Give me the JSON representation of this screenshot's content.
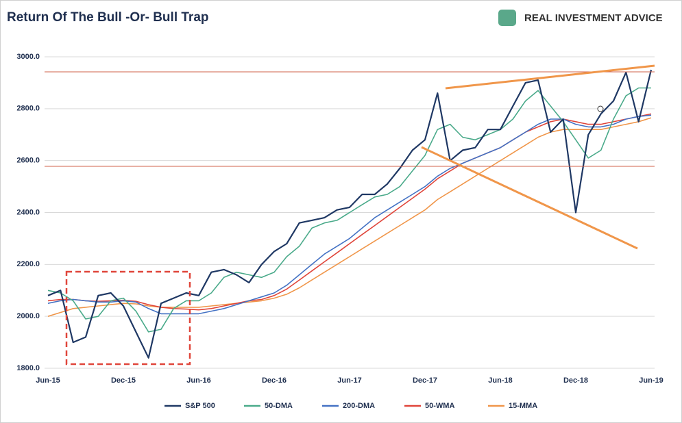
{
  "chart_data": {
    "type": "line",
    "title": "Return Of The Bull -Or- Bull Trap",
    "logo": "REAL INVESTMENT ADVICE",
    "x": [
      "Jun-15",
      null,
      null,
      null,
      null,
      null,
      "Dec-15",
      null,
      null,
      null,
      null,
      null,
      "Jun-16",
      null,
      null,
      null,
      null,
      null,
      "Dec-16",
      null,
      null,
      null,
      null,
      null,
      "Jun-17",
      null,
      null,
      null,
      null,
      null,
      "Dec-17",
      null,
      null,
      null,
      null,
      null,
      "Jun-18",
      null,
      null,
      null,
      null,
      null,
      "Dec-18",
      null,
      null,
      null,
      null,
      null,
      "Jun-19"
    ],
    "series": [
      {
        "name": "S&P 500",
        "color": "#1f3864",
        "values": [
          2080,
          2100,
          1900,
          1920,
          2080,
          2090,
          2040,
          1940,
          1840,
          2050,
          2070,
          2090,
          2080,
          2170,
          2180,
          2160,
          2130,
          2200,
          2250,
          2280,
          2360,
          2370,
          2380,
          2410,
          2420,
          2470,
          2470,
          2510,
          2570,
          2640,
          2680,
          2860,
          2600,
          2640,
          2650,
          2720,
          2720,
          2810,
          2900,
          2910,
          2710,
          2760,
          2400,
          2700,
          2780,
          2830,
          2940,
          2750,
          2950
        ]
      },
      {
        "name": "50-DMA",
        "color": "#4aaa8a",
        "values": [
          2100,
          2090,
          2060,
          1990,
          2000,
          2060,
          2070,
          2020,
          1940,
          1950,
          2030,
          2060,
          2060,
          2090,
          2150,
          2170,
          2160,
          2150,
          2170,
          2230,
          2270,
          2340,
          2360,
          2370,
          2400,
          2430,
          2460,
          2470,
          2500,
          2560,
          2620,
          2720,
          2740,
          2690,
          2680,
          2700,
          2720,
          2760,
          2830,
          2870,
          2810,
          2750,
          2680,
          2610,
          2640,
          2760,
          2850,
          2880,
          2880
        ]
      },
      {
        "name": "200-DMA",
        "color": "#4472c4",
        "values": [
          2050,
          2060,
          2065,
          2060,
          2055,
          2055,
          2060,
          2055,
          2030,
          2010,
          2010,
          2010,
          2010,
          2020,
          2030,
          2045,
          2060,
          2075,
          2090,
          2120,
          2160,
          2200,
          2240,
          2270,
          2300,
          2340,
          2380,
          2410,
          2440,
          2470,
          2500,
          2540,
          2570,
          2590,
          2610,
          2630,
          2650,
          2680,
          2710,
          2740,
          2760,
          2760,
          2740,
          2730,
          2730,
          2740,
          2760,
          2770,
          2775
        ]
      },
      {
        "name": "50-WMA",
        "color": "#e0453a",
        "values": [
          2060,
          2065,
          2065,
          2060,
          2058,
          2060,
          2062,
          2058,
          2045,
          2035,
          2030,
          2028,
          2025,
          2030,
          2040,
          2050,
          2060,
          2065,
          2080,
          2105,
          2140,
          2175,
          2210,
          2245,
          2280,
          2315,
          2350,
          2385,
          2420,
          2455,
          2490,
          2530,
          2560,
          2590,
          2610,
          2630,
          2650,
          2680,
          2710,
          2730,
          2750,
          2760,
          2750,
          2740,
          2740,
          2750,
          2760,
          2770,
          2780
        ]
      },
      {
        "name": "15-MMA",
        "color": "#f0964a",
        "values": [
          2000,
          2015,
          2030,
          2035,
          2040,
          2045,
          2050,
          2048,
          2040,
          2035,
          2035,
          2035,
          2035,
          2040,
          2045,
          2050,
          2055,
          2060,
          2070,
          2085,
          2110,
          2140,
          2170,
          2200,
          2230,
          2260,
          2290,
          2320,
          2350,
          2380,
          2410,
          2450,
          2480,
          2510,
          2540,
          2570,
          2600,
          2630,
          2660,
          2690,
          2710,
          2720,
          2720,
          2720,
          2720,
          2730,
          2740,
          2750,
          2765
        ]
      }
    ],
    "ylim": [
      1800,
      3000
    ],
    "yticks": [
      {
        "value": 1800,
        "label": "1800.0"
      },
      {
        "value": 2000,
        "label": "2000.0"
      },
      {
        "value": 2200,
        "label": "2200.0"
      },
      {
        "value": 2400,
        "label": "2400.0"
      },
      {
        "value": 2600,
        "label": "2600.0"
      },
      {
        "value": 2800,
        "label": "2800.0"
      },
      {
        "value": 3000,
        "label": "3000.0"
      }
    ],
    "grid": true
  }
}
